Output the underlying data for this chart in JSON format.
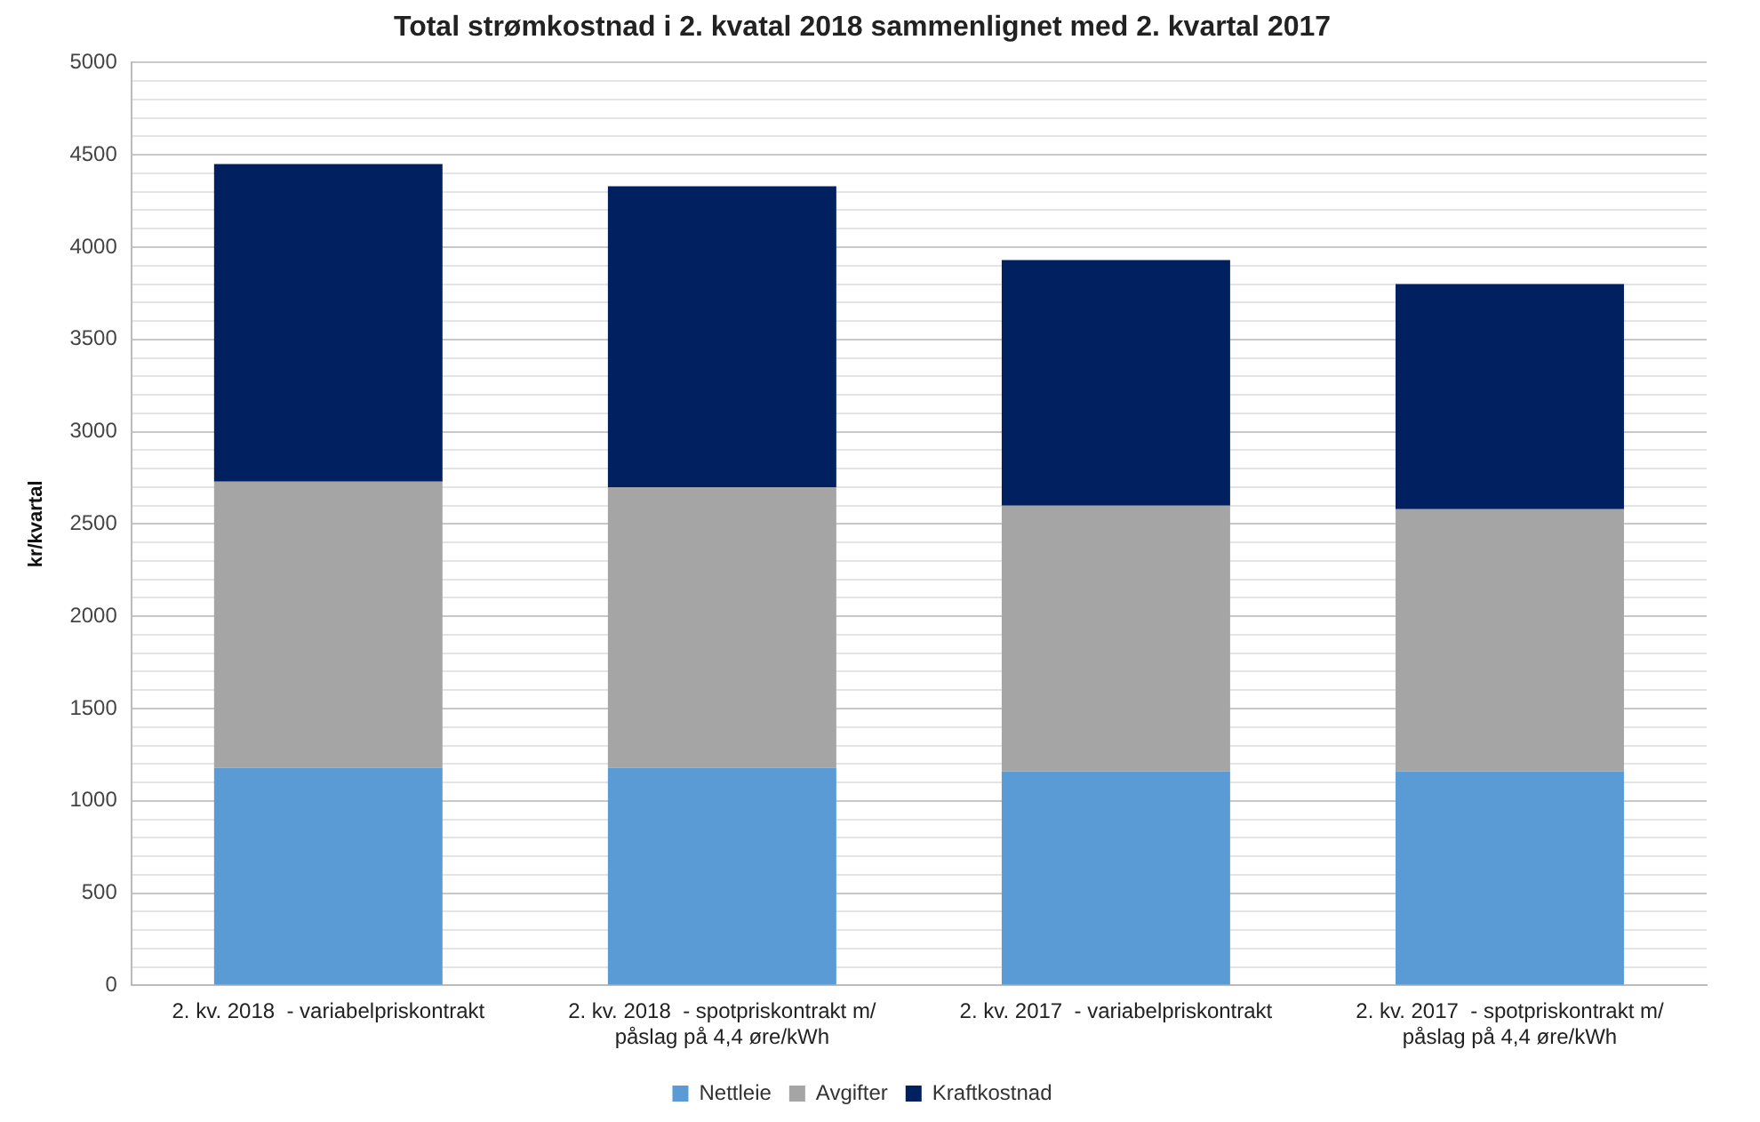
{
  "chart_data": {
    "type": "bar",
    "title": "Total strømkostnad i 2. kvatal 2018 sammenlignet med 2. kvartal 2017",
    "ylabel": "kr/kvartal",
    "categories": [
      "2. kv. 2018  - variabelpriskontrakt",
      "2. kv. 2018  - spotpriskontrakt m/ påslag på 4,4 øre/kWh",
      "2. kv. 2017  - variabelpriskontrakt",
      "2. kv. 2017  - spotpriskontrakt m/ påslag på 4,4 øre/kWh"
    ],
    "series": [
      {
        "name": "Nettleie",
        "color": "#5b9bd5",
        "values": [
          1180,
          1180,
          1160,
          1160
        ]
      },
      {
        "name": "Avgifter",
        "color": "#a5a5a5",
        "values": [
          1550,
          1520,
          1440,
          1420
        ]
      },
      {
        "name": "Kraftkostnad",
        "color": "#002060",
        "values": [
          1720,
          1630,
          1330,
          1220
        ]
      }
    ],
    "stacked": true,
    "ylim": [
      0,
      5000
    ],
    "yticks": [
      0,
      {
        "value": 100,
        "label": null
      },
      {
        "value": 200,
        "label": null
      },
      {
        "value": 300,
        "label": null
      },
      {
        "value": 400,
        "label": null
      },
      500,
      {
        "value": 600,
        "label": null
      },
      {
        "value": 700,
        "label": null
      },
      {
        "value": 800,
        "label": null
      },
      {
        "value": 900,
        "label": null
      },
      1000,
      {
        "value": 1100,
        "label": null
      },
      {
        "value": 1200,
        "label": null
      },
      {
        "value": 1300,
        "label": null
      },
      {
        "value": 1400,
        "label": null
      },
      1500,
      {
        "value": 1600,
        "label": null
      },
      {
        "value": 1700,
        "label": null
      },
      {
        "value": 1800,
        "label": null
      },
      {
        "value": 1900,
        "label": null
      },
      2000,
      {
        "value": 2100,
        "label": null
      },
      {
        "value": 2200,
        "label": null
      },
      {
        "value": 2300,
        "label": null
      },
      {
        "value": 2400,
        "label": null
      },
      2500,
      {
        "value": 2600,
        "label": null
      },
      {
        "value": 2700,
        "label": null
      },
      {
        "value": 2800,
        "label": null
      },
      {
        "value": 2900,
        "label": null
      },
      3000,
      {
        "value": 3100,
        "label": null
      },
      {
        "value": 3200,
        "label": null
      },
      {
        "value": 3300,
        "label": null
      },
      {
        "value": 3400,
        "label": null
      },
      3500,
      {
        "value": 3600,
        "label": null
      },
      {
        "value": 3700,
        "label": null
      },
      {
        "value": 3800,
        "label": null
      },
      {
        "value": 3900,
        "label": null
      },
      4000,
      {
        "value": 4100,
        "label": null
      },
      {
        "value": 4200,
        "label": null
      },
      {
        "value": 4300,
        "label": null
      },
      {
        "value": 4400,
        "label": null
      },
      4500,
      {
        "value": 4600,
        "label": null
      },
      {
        "value": 4700,
        "label": null
      },
      {
        "value": 4800,
        "label": null
      },
      {
        "value": 4900,
        "label": null
      },
      5000
    ],
    "grid": "y",
    "legend": "bottom"
  }
}
